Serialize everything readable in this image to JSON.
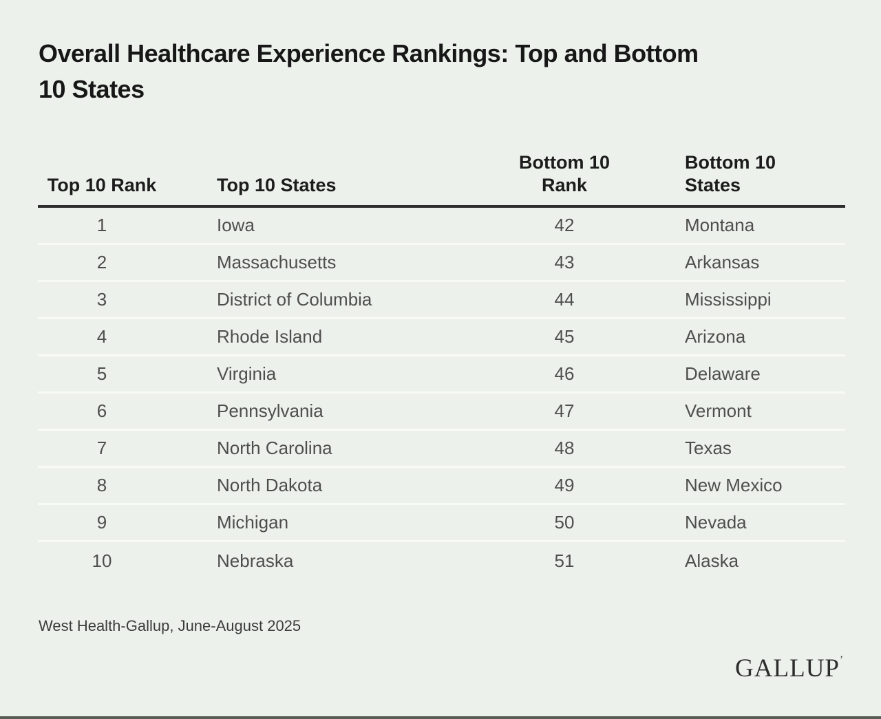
{
  "page": {
    "title_lines": [
      "Overall Healthcare Experience Rankings: Top and Bottom",
      "10 States"
    ],
    "source_note": "West Health-Gallup, June-August 2025",
    "logo": {
      "text": "GALLUP",
      "trademark": "’"
    }
  },
  "table": {
    "headers": [
      {
        "lines": [
          "Top 10 Rank"
        ]
      },
      {
        "lines": [
          "Top 10 States"
        ]
      },
      {
        "lines": [
          "Bottom 10",
          "Rank"
        ]
      },
      {
        "lines": [
          "Bottom 10",
          "States"
        ]
      }
    ]
  },
  "chart_data": {
    "type": "table",
    "title": "Overall Healthcare Experience Rankings: Top and Bottom 10 States",
    "columns": [
      "Top 10 Rank",
      "Top 10 States",
      "Bottom 10 Rank",
      "Bottom 10 States"
    ],
    "rows": [
      [
        1,
        "Iowa",
        42,
        "Montana"
      ],
      [
        2,
        "Massachusetts",
        43,
        "Arkansas"
      ],
      [
        3,
        "District of Columbia",
        44,
        "Mississippi"
      ],
      [
        4,
        "Rhode Island",
        45,
        "Arizona"
      ],
      [
        5,
        "Virginia",
        46,
        "Delaware"
      ],
      [
        6,
        "Pennsylvania",
        47,
        "Vermont"
      ],
      [
        7,
        "North Carolina",
        48,
        "Texas"
      ],
      [
        8,
        "North Dakota",
        49,
        "New Mexico"
      ],
      [
        9,
        "Michigan",
        50,
        "Nevada"
      ],
      [
        10,
        "Nebraska",
        51,
        "Alaska"
      ]
    ],
    "source": "West Health-Gallup, June-August 2025",
    "colors": {
      "background": "#edf1ec",
      "title_text": "#171717",
      "header_text": "#1c1c1c",
      "body_text": "#4e4f4c",
      "header_rule": "#2e2e2e",
      "row_divider": "#f8faf5",
      "bottom_bar": "#585d55"
    }
  }
}
